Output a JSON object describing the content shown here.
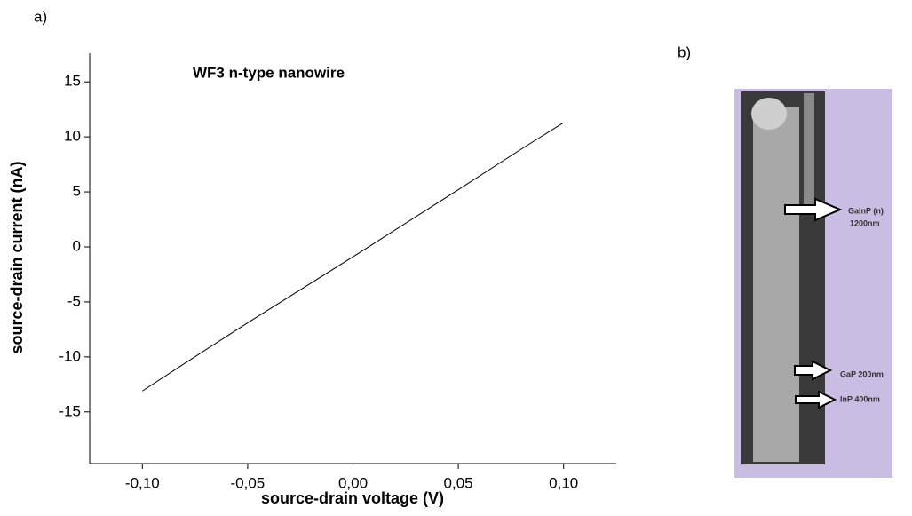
{
  "panel_labels": [
    "a)",
    "b)"
  ],
  "chart_data": {
    "type": "line",
    "annotation": "WF3 n-type nanowire",
    "x_label": "source-drain voltage (V)",
    "y_label": "source-drain current (nA)",
    "x": [
      -0.1,
      -0.08,
      -0.05,
      0,
      0.05,
      0.08,
      0.1
    ],
    "series": [
      {
        "color": "#000000",
        "values": [
          -13.1,
          -10.6,
          -6.9,
          -0.9,
          5.2,
          8.9,
          11.3
        ]
      }
    ],
    "xlim": [
      -0.125,
      0.125
    ],
    "ylim": [
      -19.7,
      17.6
    ],
    "xticks": [
      {
        "value": -0.1,
        "label": "-0,10"
      },
      {
        "value": -0.05,
        "label": "-0,05"
      },
      {
        "value": 0,
        "label": "0,00"
      },
      {
        "value": 0.05,
        "label": "0,05"
      },
      {
        "value": 0.1,
        "label": "0,10"
      }
    ],
    "yticks": [
      -15,
      -10,
      -5,
      0,
      5,
      10,
      15
    ]
  },
  "image": {
    "labels": [
      "GaInP (n)",
      "1200nm",
      "GaP 200nm",
      "InP 400nm"
    ]
  }
}
